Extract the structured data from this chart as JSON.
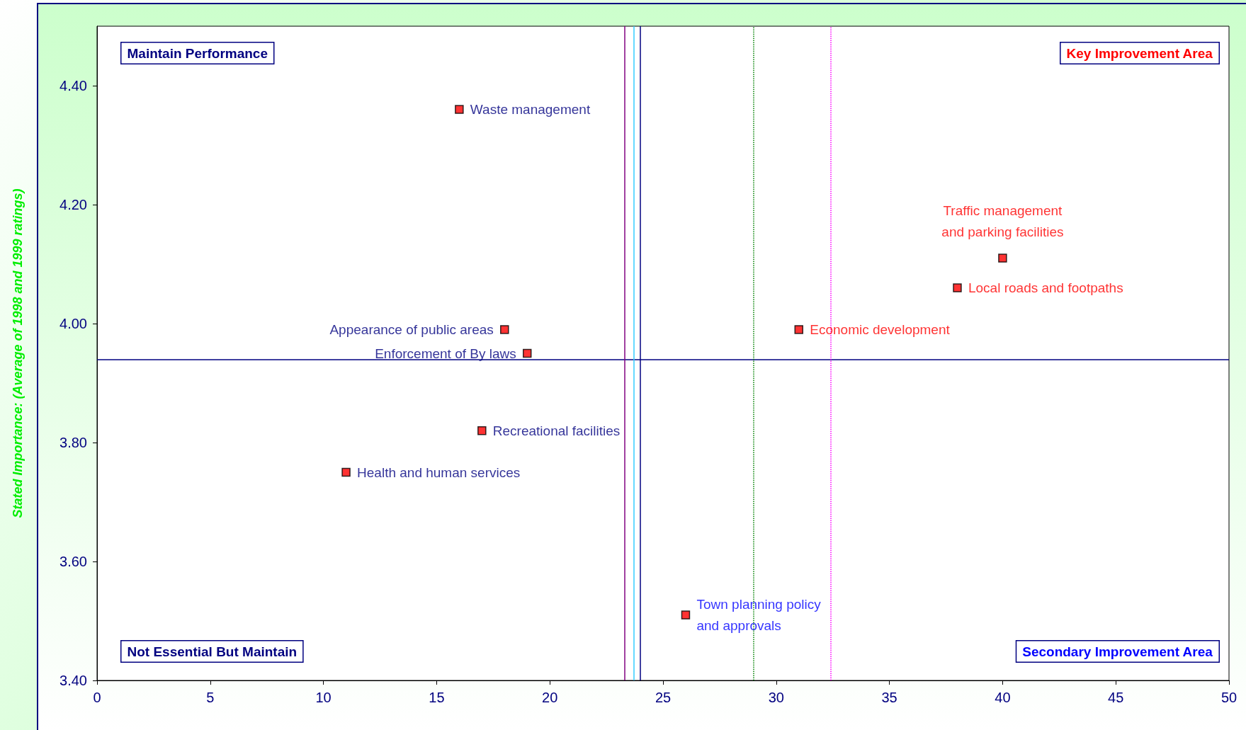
{
  "chart_data": {
    "type": "scatter",
    "ylabel": "Stated Importance: (Average of 1998 and 1999 ratings)",
    "x": [
      16,
      18,
      19,
      17,
      11,
      26,
      31,
      38,
      40
    ],
    "series": [
      {
        "color": "#ff0000",
        "values": [
          4.36,
          3.99,
          3.95,
          3.82,
          3.75,
          3.51,
          3.99,
          4.06,
          4.11
        ]
      }
    ],
    "xlim": [
      0,
      50
    ],
    "xticks": [
      0,
      5,
      10,
      15,
      20,
      25,
      30,
      35,
      40,
      45,
      50
    ],
    "ylim": [
      3.4,
      4.5
    ],
    "yticks": [
      {
        "value": 3.4,
        "label": "3.40"
      },
      {
        "value": 3.6,
        "label": "3.60"
      },
      {
        "value": 3.8,
        "label": "3.80"
      },
      {
        "value": 4.0,
        "label": "4.00"
      },
      {
        "value": 4.2,
        "label": "4.20"
      },
      {
        "value": 4.4,
        "label": "4.40"
      }
    ],
    "marker": "square",
    "grid": false,
    "ref_lines": [
      {
        "axis": "y",
        "value": 3.94,
        "color": "#000080",
        "line_style": "solid"
      },
      {
        "axis": "x",
        "value": 23.3,
        "color": "#800080",
        "line_style": "solid"
      },
      {
        "axis": "x",
        "value": 23.7,
        "color": "#33ccff",
        "line_style": "solid"
      },
      {
        "axis": "x",
        "value": 24.0,
        "color": "#000080",
        "line_style": "solid"
      },
      {
        "axis": "x",
        "value": 29.0,
        "color": "#008000",
        "line_style": "dotted"
      },
      {
        "axis": "x",
        "value": 32.4,
        "color": "#ff00ff",
        "line_style": "dotted"
      }
    ],
    "annotations": [
      "Maintain Performance",
      "Key Improvement Area",
      "Not Essential But Maintain",
      "Secondary Improvement Area",
      {
        "text": "Waste management",
        "x": 16,
        "y": 4.36
      },
      {
        "text": "Appearance of public areas",
        "x": 18,
        "y": 3.99
      },
      {
        "text": "Enforcement of By laws",
        "x": 19,
        "y": 3.95
      },
      {
        "text": "Recreational facilities",
        "x": 17,
        "y": 3.82
      },
      {
        "text": "Health and human services",
        "x": 11,
        "y": 3.75
      },
      {
        "text": "Town planning policy\nand approvals",
        "x": 26,
        "y": 3.51
      },
      {
        "text": "Economic development",
        "x": 31,
        "y": 3.99
      },
      {
        "text": "Local roads and footpaths",
        "x": 38,
        "y": 4.06
      },
      {
        "text": "Traffic management\nand parking facilities",
        "x": 40,
        "y": 4.11
      }
    ]
  }
}
